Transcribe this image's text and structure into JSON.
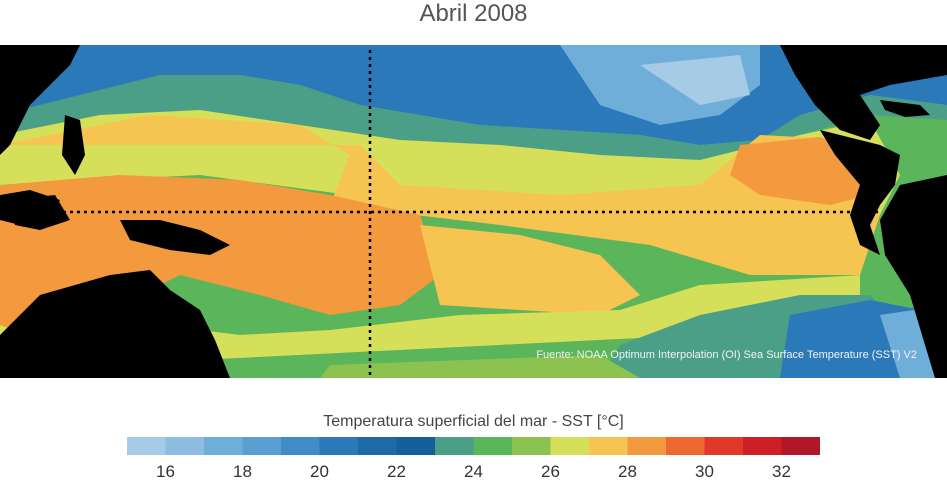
{
  "title": "Abril 2008",
  "source": "Fuente: NOAA Optimum Interpolation (OI) Sea Surface Temperature (SST) V2",
  "colorbar": {
    "label": "Temperatura superficial del mar - SST  [°C]",
    "colors": [
      "#a6cbe6",
      "#8dbde0",
      "#6faed9",
      "#5a9fd1",
      "#3f8cc6",
      "#2b79b8",
      "#1e69a7",
      "#14609a",
      "#4a9f86",
      "#5bb55a",
      "#8cc350",
      "#d6df5a",
      "#f6c450",
      "#f39a3e",
      "#ec6a30",
      "#e0392a",
      "#cc1f26",
      "#b0182a"
    ],
    "ticks": [
      "16",
      "18",
      "20",
      "22",
      "24",
      "26",
      "28",
      "30",
      "32"
    ]
  },
  "map_colors": {
    "land": "#000000",
    "warm_pool": "#f39a3e",
    "warm": "#f6c450",
    "mild": "#d6df5a",
    "green": "#8cc350",
    "green_dark": "#5bb55a",
    "teal": "#4a9f86",
    "blue_mid": "#2b79b8",
    "blue_light": "#6faed9",
    "blue_pale": "#a6cbe6"
  }
}
